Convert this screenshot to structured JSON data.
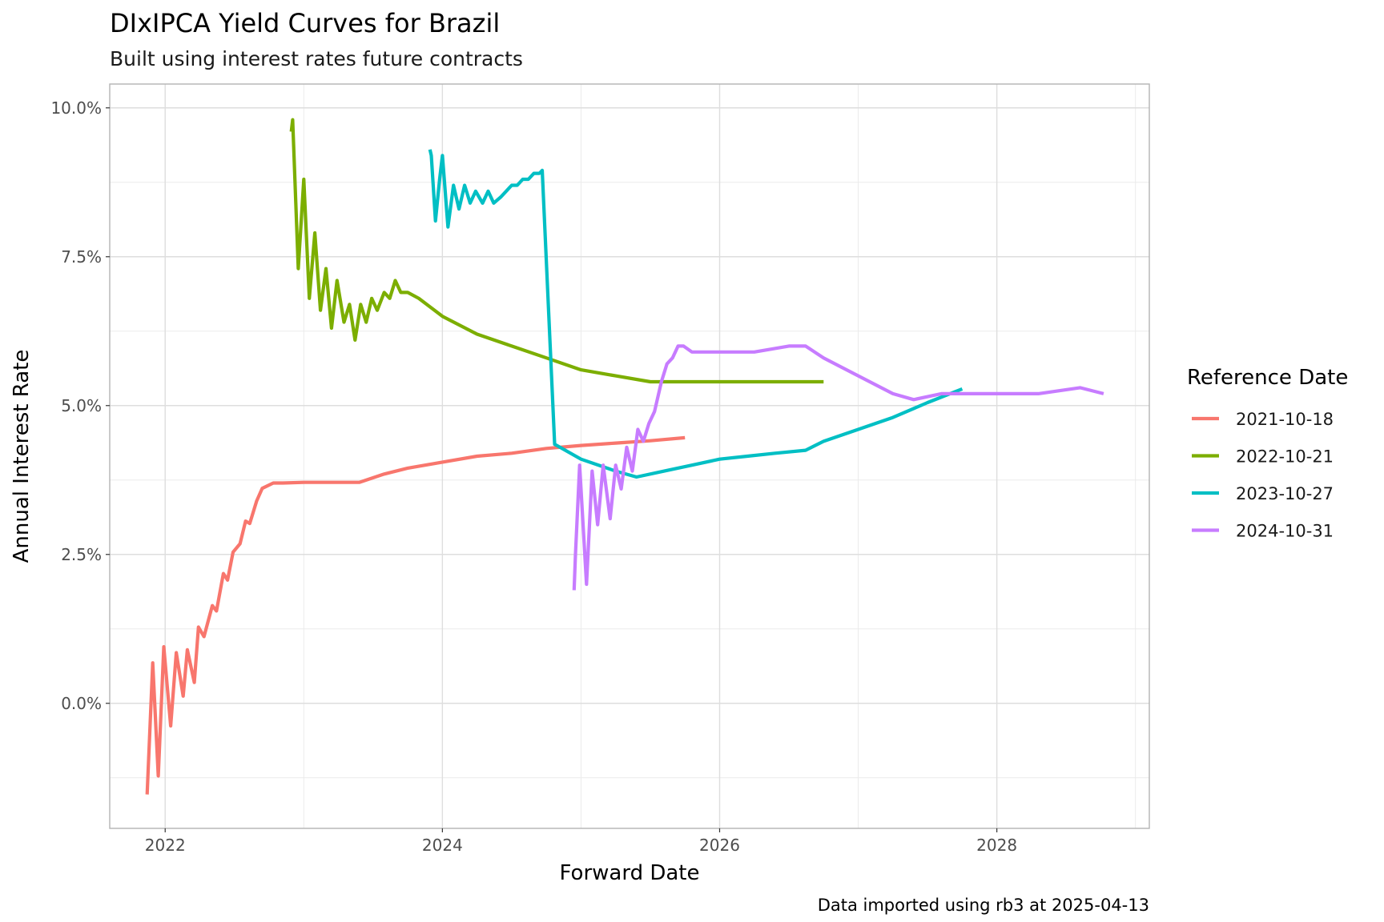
{
  "chart_data": {
    "type": "line",
    "title": "DIxIPCA Yield Curves for Brazil",
    "subtitle": "Built using interest rates future contracts",
    "xlabel": "Forward Date",
    "ylabel": "Annual Interest Rate",
    "caption": "Data imported using rb3 at 2025-04-13",
    "xlim": [
      2021.6,
      2029.1
    ],
    "ylim": [
      -0.021,
      0.104
    ],
    "x_ticks": [
      2022,
      2024,
      2026,
      2028
    ],
    "x_tick_labels": [
      "2022",
      "2024",
      "2026",
      "2028"
    ],
    "y_ticks": [
      0.0,
      0.025,
      0.05,
      0.075,
      0.1
    ],
    "y_tick_labels": [
      "0.0%",
      "2.5%",
      "5.0%",
      "7.5%",
      "10.0%"
    ],
    "grid": true,
    "legend_title": "Reference Date",
    "legend_position": "right",
    "series": [
      {
        "name": "2021-10-18",
        "color": "#F8766D",
        "x": [
          2021.87,
          2021.91,
          2021.95,
          2021.99,
          2022.04,
          2022.08,
          2022.13,
          2022.16,
          2022.21,
          2022.24,
          2022.28,
          2022.34,
          2022.37,
          2022.42,
          2022.45,
          2022.49,
          2022.54,
          2022.58,
          2022.61,
          2022.66,
          2022.7,
          2022.78,
          2022.85,
          2023.0,
          2023.2,
          2023.4,
          2023.58,
          2023.75,
          2024.0,
          2024.25,
          2024.5,
          2024.75,
          2025.0,
          2025.25,
          2025.5,
          2025.75
        ],
        "y": [
          -0.0153,
          0.0068,
          -0.0122,
          0.0095,
          -0.0038,
          0.0085,
          0.0012,
          0.009,
          0.0035,
          0.0128,
          0.0112,
          0.0164,
          0.0155,
          0.0218,
          0.0207,
          0.0254,
          0.0268,
          0.0306,
          0.0302,
          0.034,
          0.0361,
          0.037,
          0.037,
          0.0371,
          0.0371,
          0.0371,
          0.0385,
          0.0395,
          0.0405,
          0.0415,
          0.042,
          0.0428,
          0.0433,
          0.0437,
          0.0441,
          0.0446
        ]
      },
      {
        "name": "2022-10-21",
        "color": "#7CAE00",
        "x": [
          2022.91,
          2022.92,
          2022.96,
          2023.0,
          2023.04,
          2023.08,
          2023.12,
          2023.16,
          2023.2,
          2023.24,
          2023.29,
          2023.33,
          2023.37,
          2023.41,
          2023.45,
          2023.49,
          2023.53,
          2023.58,
          2023.62,
          2023.66,
          2023.7,
          2023.75,
          2023.83,
          2024.0,
          2024.25,
          2024.5,
          2024.75,
          2025.0,
          2025.25,
          2025.5,
          2025.75,
          2026.0,
          2026.25,
          2026.5,
          2026.75
        ],
        "y": [
          0.096,
          0.098,
          0.073,
          0.088,
          0.068,
          0.079,
          0.066,
          0.073,
          0.063,
          0.071,
          0.064,
          0.067,
          0.061,
          0.067,
          0.064,
          0.068,
          0.066,
          0.069,
          0.068,
          0.071,
          0.069,
          0.069,
          0.068,
          0.065,
          0.062,
          0.06,
          0.058,
          0.056,
          0.055,
          0.054,
          0.054,
          0.054,
          0.054,
          0.054,
          0.054
        ]
      },
      {
        "name": "2023-10-27",
        "color": "#00BFC4",
        "x": [
          2023.91,
          2023.92,
          2023.95,
          2023.98,
          2024.0,
          2024.04,
          2024.08,
          2024.12,
          2024.16,
          2024.2,
          2024.24,
          2024.29,
          2024.33,
          2024.37,
          2024.42,
          2024.46,
          2024.5,
          2024.54,
          2024.58,
          2024.62,
          2024.66,
          2024.7,
          2024.72,
          2024.81,
          2025.0,
          2025.25,
          2025.4,
          2025.6,
          2025.8,
          2026.0,
          2026.2,
          2026.4,
          2026.62,
          2026.75,
          2027.0,
          2027.25,
          2027.5,
          2027.75
        ],
        "y": [
          0.093,
          0.092,
          0.081,
          0.088,
          0.092,
          0.08,
          0.087,
          0.083,
          0.087,
          0.084,
          0.086,
          0.084,
          0.086,
          0.084,
          0.085,
          0.086,
          0.087,
          0.087,
          0.088,
          0.088,
          0.089,
          0.089,
          0.0895,
          0.0435,
          0.041,
          0.039,
          0.038,
          0.039,
          0.04,
          0.041,
          0.0415,
          0.042,
          0.0425,
          0.044,
          0.046,
          0.048,
          0.0505,
          0.0528
        ]
      },
      {
        "name": "2024-10-31",
        "color": "#C77CFF",
        "x": [
          2024.95,
          2024.96,
          2024.99,
          2025.04,
          2025.08,
          2025.12,
          2025.16,
          2025.21,
          2025.25,
          2025.29,
          2025.33,
          2025.37,
          2025.41,
          2025.45,
          2025.49,
          2025.53,
          2025.58,
          2025.62,
          2025.66,
          2025.7,
          2025.74,
          2025.8,
          2026.0,
          2026.25,
          2026.5,
          2026.62,
          2026.75,
          2027.0,
          2027.25,
          2027.4,
          2027.6,
          2027.8,
          2028.0,
          2028.3,
          2028.6,
          2028.77
        ],
        "y": [
          0.019,
          0.025,
          0.04,
          0.02,
          0.039,
          0.03,
          0.04,
          0.031,
          0.04,
          0.036,
          0.043,
          0.039,
          0.046,
          0.044,
          0.047,
          0.049,
          0.054,
          0.057,
          0.058,
          0.06,
          0.06,
          0.059,
          0.059,
          0.059,
          0.06,
          0.06,
          0.058,
          0.055,
          0.052,
          0.051,
          0.052,
          0.052,
          0.052,
          0.052,
          0.053,
          0.052
        ]
      }
    ]
  }
}
